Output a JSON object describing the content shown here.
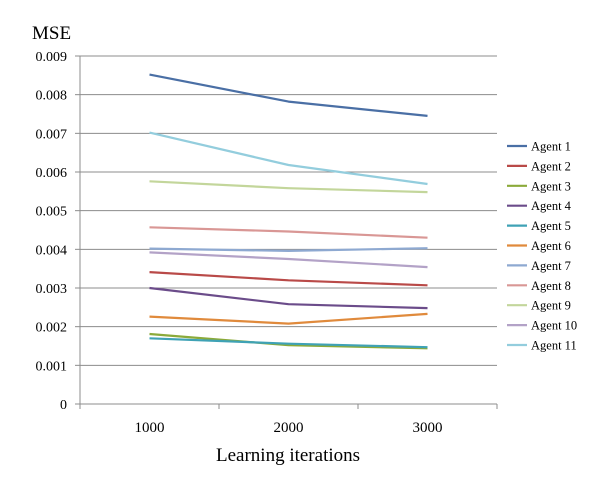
{
  "chart_data": {
    "type": "line",
    "title": "",
    "ylabel": "MSE",
    "xlabel": "Learning iterations",
    "categories": [
      "1000",
      "2000",
      "3000"
    ],
    "ylim": [
      0,
      0.009
    ],
    "yticks": [
      "0",
      "0.001",
      "0.002",
      "0.003",
      "0.004",
      "0.005",
      "0.006",
      "0.007",
      "0.008",
      "0.009"
    ],
    "grid": "horizontal",
    "legend_position": "right",
    "series": [
      {
        "name": "Agent 1",
        "color": "#4A6FA5",
        "values": [
          0.00852,
          0.00782,
          0.00745
        ]
      },
      {
        "name": "Agent 2",
        "color": "#B94A48",
        "values": [
          0.00341,
          0.0032,
          0.00307
        ]
      },
      {
        "name": "Agent 3",
        "color": "#8BAA3A",
        "values": [
          0.00181,
          0.00152,
          0.00144
        ]
      },
      {
        "name": "Agent 4",
        "color": "#6B4C8A",
        "values": [
          0.003,
          0.00258,
          0.00248
        ]
      },
      {
        "name": "Agent 5",
        "color": "#3FA2B5",
        "values": [
          0.0017,
          0.00156,
          0.00147
        ]
      },
      {
        "name": "Agent 6",
        "color": "#E08A3C",
        "values": [
          0.00226,
          0.00208,
          0.00233
        ]
      },
      {
        "name": "Agent 7",
        "color": "#8EA9D1",
        "values": [
          0.00402,
          0.00396,
          0.00403
        ]
      },
      {
        "name": "Agent 8",
        "color": "#D99795",
        "values": [
          0.00457,
          0.00446,
          0.0043
        ]
      },
      {
        "name": "Agent 9",
        "color": "#C3D69B",
        "values": [
          0.00576,
          0.00558,
          0.00548
        ]
      },
      {
        "name": "Agent 10",
        "color": "#B3A2C7",
        "values": [
          0.00392,
          0.00375,
          0.00354
        ]
      },
      {
        "name": "Agent 11",
        "color": "#93CDDD",
        "values": [
          0.00702,
          0.00618,
          0.00569
        ]
      }
    ]
  }
}
